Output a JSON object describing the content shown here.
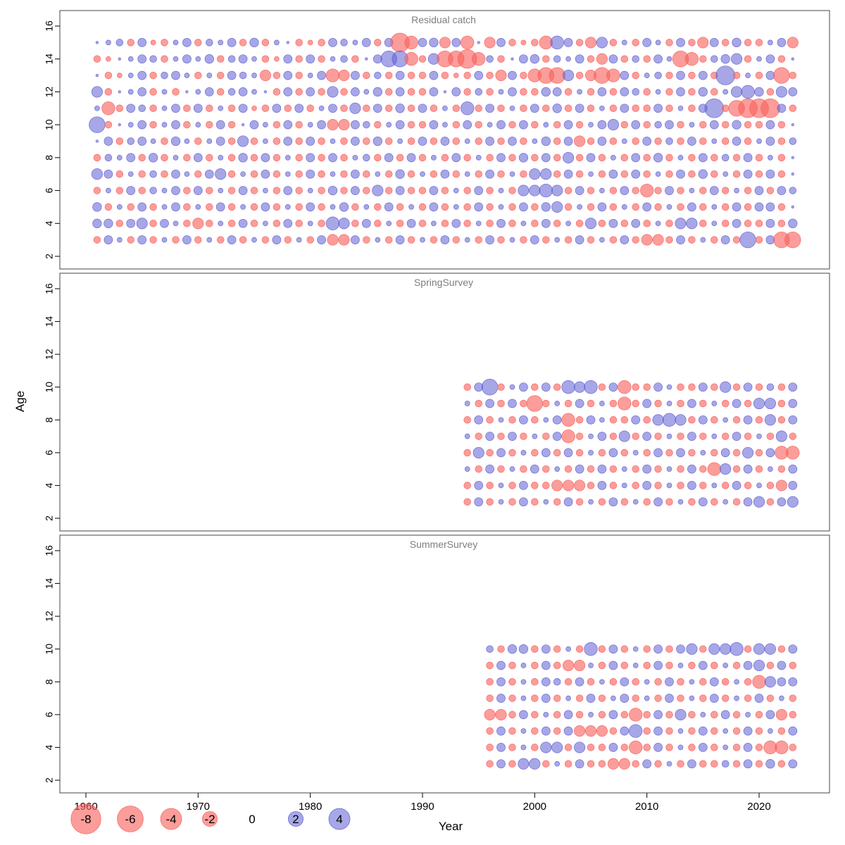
{
  "chart_data": {
    "type": "bubble",
    "description_title": "",
    "axis": {
      "x_label": "Year",
      "y_label": "Age",
      "x_ticks": [
        1960,
        1970,
        1980,
        1990,
        2000,
        2010,
        2020
      ],
      "y_ticks": [
        2,
        4,
        6,
        8,
        10,
        12,
        14,
        16
      ],
      "x_range": [
        1957,
        2026
      ],
      "y_range": [
        2,
        16
      ]
    },
    "colors": {
      "negative": "#f9615c",
      "positive": "#5f5fd3",
      "zero": "#000000",
      "panel_border": "#444444",
      "title_gray": "#7e7e7e"
    },
    "legend": {
      "values": [
        -8,
        -6,
        -4,
        -2,
        0,
        2,
        4
      ]
    },
    "encoding": {
      ".": 0.08,
      "a": 0.3,
      "b": -0.6,
      "c": 0.9,
      "d": -1.5,
      "e": -2.2,
      "f": -3.2,
      "g": -4.5,
      "A": -0.3,
      "B": 0.6,
      "C": 1,
      "D": 1.5,
      "E": 2.2,
      "F": 3.2,
      "G": 4.5
    },
    "panels": [
      {
        "name": "Residual catch",
        "start_year": 1961,
        "ages": [
          15,
          14,
          13,
          12,
          11,
          10,
          9,
          8,
          7,
          6,
          5,
          4,
          3
        ],
        "rows": [
          ".aBbcAbacbBacbCba.bAbcBacbcgecCdce.dcbAbeEcbdDbabcabcbdcbCbbacd",
          "bA.acBbacaCbBcabAcbcbaBb.cFFebDffgeBb.cCbBacbdcbBbcafebBCDbacb.",
          ".bAacbBcababcBadbcbacedcbBbcbbcbAbcbdcbeffDbdfecbaBbcbcbGbabcfb",
          "Db.acbab.acbBca.bcbcbDbcaCbcbbc.cbBbacbbCcbabcbcBbabcbCbaDECbDc",
          "aebcBbacbcbabcAbcbcbacbDbcbCbcbabEbcbabcbCbcbabcbbcbabcGbfgggcb",
          "Fb.acbacbabcb.cabcbacddcBbacbbcabcbacbcbabcbacDbcbBcbabcbCbbcb.",
          ".cbBcabCabacbDbabcbcbabcbCbabcbcbabcbcbaCbcdbcbabcbBbcbabcbacbB",
          "bBacbCbabcbabCbcbabcbcbaBbcbcbabcbabcbCbcbDbcbabcbCbabcbBbcbab.",
          "DcbabBbcabcDbabcbabcbabcbabCbabcbabcbabDDbcbabcbcbabcbCbabcbcb.",
          "babcbBacbcbabcbabcbabCbcbDbcbbcbabcbabDDEDbcbabcbebcbabcbabcbcB",
          "CbabcbacbabcbabcbabcbaCbabcbabcbabcbabcbCDbabcbabcbabcbabcbccb.",
          "CCbcDbcabdbabcbabcbabEDbcbabcbabcbabcbabcbabDbcbcbabDDbabcbbcbC",
          "bcabcbabcbabcbabcbabcddcbabcbabcbabcbabcbabcbabcbddbcbabcbFbcff"
        ]
      },
      {
        "name": "SpringSurvey",
        "start_year": 1994,
        "ages": [
          10,
          9,
          8,
          7,
          6,
          5,
          4,
          3
        ],
        "rows": [
          "bcFbacbcbEDEbcebbcabbcbDbcbBbc",
          "abcbcbfbabcbabebcbabcbabcbDDbc",
          "bcbabcbacebcabbcbDEDbcbabcbDbc",
          "abcbcbabcebacbDbcbabcbabcbabDb",
          "bDbcbabcbcbabcbabcbcbabcbDbcee",
          "abcbabcbabcbcbabcbabcbeDbcbabc",
          "bcbabcbbdddbcbabcbabcbabcbabdc",
          "bcbabcbabcbabcbabcbabcbabcDbcD"
        ]
      },
      {
        "name": "SummerSurvey",
        "start_year": 1996,
        "ages": [
          10,
          9,
          8,
          7,
          6,
          5,
          4,
          3
        ],
        "rows": [
          "BbCCbcbabEbcbabcbcDbDDEbDDbc",
          "bcbabcbddabcbabcbabcbabcDbcb",
          "bcbabcBbcbabcbabcbabcbabeDcc",
          "bcbabcbabcbacbabcbabcbabcbab",
          "ddbcbabcbabcbebcbDbabcbabcdb",
          "bcbabcbcdddbcEbcbabcbabcbabc",
          "bcbabDDbDbbcbebcbabcbabcbeeb",
          "bcbDDbabcbbddbcbabcbbBbcbCbc"
        ]
      }
    ]
  }
}
